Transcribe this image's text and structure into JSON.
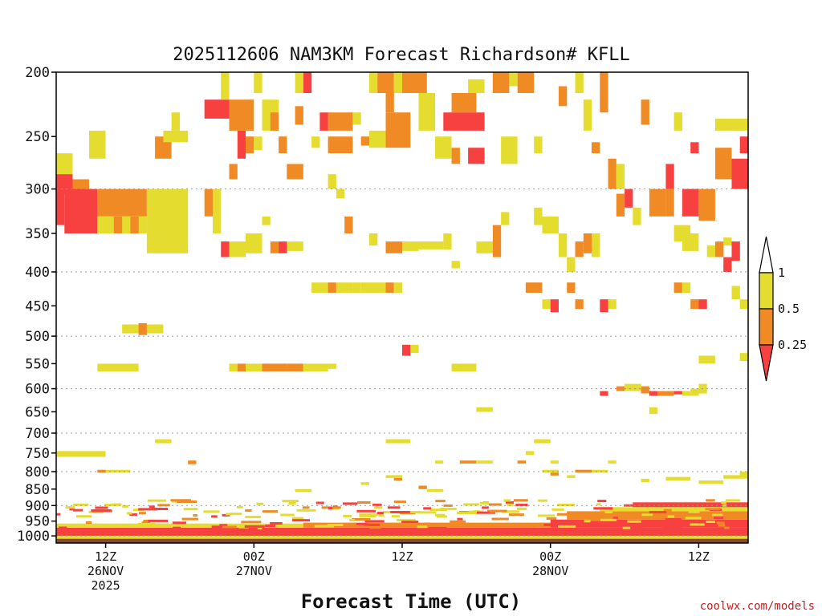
{
  "chart_data": {
    "type": "heatmap",
    "title": "2025112606 NAM3KM Forecast Richardson# KFLL",
    "xlabel": "Forecast Time (UTC)",
    "credit": "coolwx.com/models",
    "y_axis": {
      "scale": "pressure",
      "range": [
        1025,
        200
      ],
      "ticks": [
        200,
        250,
        300,
        350,
        400,
        450,
        500,
        550,
        600,
        650,
        700,
        750,
        800,
        850,
        900,
        950,
        1000
      ],
      "gridlines": [
        300,
        400,
        500,
        600,
        700,
        800,
        900,
        1000
      ]
    },
    "x_axis": {
      "range_hours": [
        0,
        84
      ],
      "ticks": [
        {
          "hour": 6,
          "line1": "12Z",
          "line2": "26NOV",
          "line3": "2025"
        },
        {
          "hour": 24,
          "line1": "00Z",
          "line2": "27NOV",
          "line3": ""
        },
        {
          "hour": 42,
          "line1": "12Z",
          "line2": "",
          "line3": ""
        },
        {
          "hour": 60,
          "line1": "00Z",
          "line2": "28NOV",
          "line3": ""
        },
        {
          "hour": 78,
          "line1": "12Z",
          "line2": "",
          "line3": ""
        }
      ]
    },
    "legend": {
      "placement": "right",
      "labels": [
        "1",
        "0.5",
        "0.25"
      ],
      "bins": [
        {
          "range": "0.5-1",
          "color": "#e5dc30"
        },
        {
          "range": "0.25-0.5",
          "color": "#f08a24"
        },
        {
          "range": "<0.25",
          "color": "#f74040"
        }
      ]
    },
    "colors": {
      "yellow": "#e5dc30",
      "orange": "#f08a24",
      "red": "#f74040",
      "ground": "#8b4a26"
    },
    "cells": [
      [
        0,
        2,
        265,
        305,
        "y"
      ],
      [
        0,
        2,
        285,
        305,
        "r"
      ],
      [
        2,
        4,
        290,
        305,
        "o"
      ],
      [
        0,
        1,
        300,
        340,
        "r"
      ],
      [
        1,
        5,
        300,
        350,
        "r"
      ],
      [
        5,
        11,
        300,
        330,
        "o"
      ],
      [
        5,
        11,
        330,
        350,
        "y"
      ],
      [
        11,
        16,
        300,
        375,
        "y"
      ],
      [
        7,
        8,
        330,
        350,
        "o"
      ],
      [
        9,
        10,
        330,
        350,
        "o"
      ],
      [
        4,
        6,
        245,
        270,
        "y"
      ],
      [
        12,
        14,
        250,
        270,
        "o"
      ],
      [
        13,
        16,
        245,
        255,
        "y"
      ],
      [
        14,
        15,
        230,
        245,
        "y"
      ],
      [
        18,
        19,
        300,
        330,
        "o"
      ],
      [
        19,
        20,
        300,
        350,
        "y"
      ],
      [
        18,
        21,
        220,
        235,
        "r"
      ],
      [
        21,
        24,
        220,
        245,
        "o"
      ],
      [
        20,
        21,
        200,
        220,
        "y"
      ],
      [
        22,
        23,
        245,
        270,
        "r"
      ],
      [
        23,
        24,
        250,
        265,
        "o"
      ],
      [
        24,
        25,
        250,
        262,
        "y"
      ],
      [
        25,
        27,
        220,
        245,
        "y"
      ],
      [
        24,
        25,
        200,
        215,
        "y"
      ],
      [
        26,
        27,
        230,
        245,
        "o"
      ],
      [
        27,
        28,
        250,
        265,
        "o"
      ],
      [
        28,
        30,
        275,
        290,
        "o"
      ],
      [
        21,
        22,
        275,
        290,
        "o"
      ],
      [
        29,
        30,
        200,
        215,
        "y"
      ],
      [
        30,
        31,
        200,
        215,
        "r"
      ],
      [
        29,
        30,
        225,
        240,
        "o"
      ],
      [
        31,
        32,
        250,
        260,
        "y"
      ],
      [
        32,
        33,
        230,
        245,
        "r"
      ],
      [
        33,
        36,
        230,
        245,
        "o"
      ],
      [
        33,
        36,
        250,
        265,
        "o"
      ],
      [
        36,
        37,
        230,
        240,
        "y"
      ],
      [
        37,
        38,
        250,
        258,
        "o"
      ],
      [
        38,
        39,
        200,
        215,
        "y"
      ],
      [
        39,
        40,
        200,
        215,
        "o"
      ],
      [
        40,
        41,
        200,
        230,
        "o"
      ],
      [
        40,
        43,
        230,
        260,
        "o"
      ],
      [
        38,
        40,
        245,
        260,
        "y"
      ],
      [
        41,
        42,
        200,
        215,
        "y"
      ],
      [
        42,
        45,
        200,
        215,
        "o"
      ],
      [
        44,
        46,
        215,
        245,
        "y"
      ],
      [
        47,
        52,
        230,
        245,
        "r"
      ],
      [
        48,
        51,
        215,
        230,
        "o"
      ],
      [
        46,
        48,
        250,
        270,
        "y"
      ],
      [
        48,
        49,
        260,
        275,
        "o"
      ],
      [
        50,
        52,
        260,
        275,
        "r"
      ],
      [
        50,
        52,
        205,
        215,
        "y"
      ],
      [
        53,
        55,
        200,
        215,
        "o"
      ],
      [
        55,
        56,
        200,
        210,
        "y"
      ],
      [
        54,
        56,
        250,
        275,
        "y"
      ],
      [
        56,
        58,
        200,
        215,
        "o"
      ],
      [
        58,
        59,
        250,
        265,
        "y"
      ],
      [
        61,
        62,
        210,
        225,
        "o"
      ],
      [
        63,
        64,
        200,
        215,
        "y"
      ],
      [
        64,
        65,
        220,
        245,
        "y"
      ],
      [
        65,
        66,
        255,
        265,
        "o"
      ],
      [
        66,
        67,
        200,
        230,
        "o"
      ],
      [
        67,
        68,
        270,
        300,
        "o"
      ],
      [
        68,
        69,
        275,
        300,
        "y"
      ],
      [
        68,
        69,
        305,
        330,
        "o"
      ],
      [
        69,
        70,
        300,
        320,
        "r"
      ],
      [
        70,
        71,
        320,
        340,
        "y"
      ],
      [
        71,
        72,
        220,
        240,
        "o"
      ],
      [
        72,
        74,
        300,
        330,
        "o"
      ],
      [
        74,
        75,
        275,
        300,
        "r"
      ],
      [
        74,
        75,
        300,
        330,
        "o"
      ],
      [
        75,
        76,
        230,
        245,
        "y"
      ],
      [
        76,
        78,
        300,
        330,
        "r"
      ],
      [
        77,
        78,
        255,
        265,
        "r"
      ],
      [
        78,
        80,
        300,
        335,
        "o"
      ],
      [
        80,
        82,
        260,
        290,
        "o"
      ],
      [
        82,
        84,
        270,
        300,
        "r"
      ],
      [
        83,
        84,
        250,
        265,
        "r"
      ],
      [
        80,
        84,
        235,
        245,
        "y"
      ],
      [
        20,
        21,
        360,
        380,
        "r"
      ],
      [
        21,
        23,
        360,
        380,
        "y"
      ],
      [
        23,
        25,
        350,
        375,
        "y"
      ],
      [
        25,
        26,
        330,
        340,
        "y"
      ],
      [
        26,
        27,
        360,
        375,
        "o"
      ],
      [
        27,
        28,
        360,
        375,
        "r"
      ],
      [
        28,
        30,
        360,
        372,
        "y"
      ],
      [
        33,
        34,
        285,
        300,
        "y"
      ],
      [
        34,
        35,
        300,
        310,
        "y"
      ],
      [
        35,
        36,
        330,
        350,
        "o"
      ],
      [
        38,
        39,
        350,
        365,
        "y"
      ],
      [
        40,
        42,
        360,
        375,
        "o"
      ],
      [
        42,
        44,
        360,
        372,
        "y"
      ],
      [
        44,
        47,
        360,
        370,
        "y"
      ],
      [
        47,
        48,
        350,
        370,
        "y"
      ],
      [
        48,
        49,
        385,
        395,
        "y"
      ],
      [
        51,
        53,
        360,
        375,
        "y"
      ],
      [
        53,
        54,
        340,
        380,
        "o"
      ],
      [
        54,
        55,
        325,
        340,
        "y"
      ],
      [
        58,
        59,
        320,
        340,
        "y"
      ],
      [
        59,
        61,
        330,
        350,
        "y"
      ],
      [
        61,
        62,
        350,
        380,
        "y"
      ],
      [
        62,
        63,
        380,
        400,
        "y"
      ],
      [
        63,
        64,
        360,
        380,
        "o"
      ],
      [
        64,
        65,
        350,
        375,
        "o"
      ],
      [
        65,
        66,
        350,
        380,
        "y"
      ],
      [
        75,
        77,
        340,
        360,
        "y"
      ],
      [
        76,
        78,
        350,
        372,
        "y"
      ],
      [
        79,
        80,
        365,
        380,
        "y"
      ],
      [
        80,
        81,
        360,
        380,
        "o"
      ],
      [
        81,
        82,
        380,
        400,
        "r"
      ],
      [
        82,
        83,
        360,
        385,
        "r"
      ],
      [
        81,
        82,
        355,
        365,
        "y"
      ],
      [
        31,
        33,
        415,
        430,
        "y"
      ],
      [
        33,
        34,
        415,
        430,
        "o"
      ],
      [
        34,
        36,
        415,
        430,
        "y"
      ],
      [
        36,
        37,
        415,
        430,
        "y"
      ],
      [
        37,
        38,
        415,
        430,
        "y"
      ],
      [
        38,
        40,
        415,
        430,
        "y"
      ],
      [
        40,
        41,
        415,
        430,
        "o"
      ],
      [
        41,
        42,
        415,
        430,
        "y"
      ],
      [
        57,
        59,
        415,
        430,
        "o"
      ],
      [
        59,
        60,
        440,
        455,
        "y"
      ],
      [
        60,
        61,
        440,
        460,
        "r"
      ],
      [
        62,
        63,
        415,
        430,
        "o"
      ],
      [
        63,
        64,
        440,
        455,
        "o"
      ],
      [
        66,
        67,
        440,
        460,
        "r"
      ],
      [
        67,
        68,
        440,
        455,
        "y"
      ],
      [
        75,
        76,
        415,
        430,
        "o"
      ],
      [
        76,
        77,
        415,
        430,
        "y"
      ],
      [
        77,
        78,
        440,
        455,
        "o"
      ],
      [
        78,
        79,
        440,
        455,
        "r"
      ],
      [
        82,
        83,
        420,
        440,
        "y"
      ],
      [
        83,
        84,
        440,
        455,
        "y"
      ],
      [
        8,
        11,
        480,
        495,
        "y"
      ],
      [
        10,
        11,
        478,
        498,
        "o"
      ],
      [
        11,
        13,
        480,
        495,
        "y"
      ],
      [
        42,
        43,
        515,
        535,
        "r"
      ],
      [
        43,
        44,
        515,
        530,
        "y"
      ],
      [
        5,
        10,
        550,
        565,
        "y"
      ],
      [
        21,
        22,
        550,
        565,
        "y"
      ],
      [
        22,
        23,
        550,
        565,
        "o"
      ],
      [
        23,
        25,
        550,
        565,
        "y"
      ],
      [
        25,
        28,
        550,
        565,
        "o"
      ],
      [
        28,
        30,
        550,
        565,
        "o"
      ],
      [
        30,
        33,
        550,
        565,
        "y"
      ],
      [
        33,
        34,
        550,
        560,
        "y"
      ],
      [
        48,
        51,
        550,
        565,
        "y"
      ],
      [
        78,
        80,
        535,
        550,
        "y"
      ],
      [
        83,
        84,
        530,
        545,
        "y"
      ],
      [
        68,
        69,
        595,
        605,
        "o"
      ],
      [
        69,
        71,
        590,
        605,
        "y"
      ],
      [
        71,
        72,
        595,
        610,
        "o"
      ],
      [
        72,
        73,
        605,
        615,
        "r"
      ],
      [
        73,
        75,
        605,
        615,
        "o"
      ],
      [
        75,
        76,
        605,
        612,
        "r"
      ],
      [
        76,
        77,
        605,
        615,
        "y"
      ],
      [
        77,
        78,
        600,
        615,
        "y"
      ],
      [
        78,
        79,
        590,
        610,
        "y"
      ],
      [
        66,
        67,
        605,
        615,
        "r"
      ],
      [
        51,
        53,
        640,
        650,
        "y"
      ],
      [
        72,
        73,
        640,
        655,
        "y"
      ],
      [
        12,
        14,
        715,
        725,
        "y"
      ],
      [
        40,
        43,
        715,
        725,
        "y"
      ],
      [
        58,
        60,
        715,
        725,
        "y"
      ],
      [
        57,
        58,
        745,
        755,
        "y"
      ],
      [
        0,
        6,
        745,
        760,
        "y"
      ],
      [
        16,
        17,
        770,
        780,
        "o"
      ],
      [
        46,
        47,
        770,
        778,
        "y"
      ],
      [
        49,
        51,
        770,
        778,
        "o"
      ],
      [
        51,
        53,
        770,
        778,
        "y"
      ],
      [
        56,
        57,
        770,
        778,
        "o"
      ],
      [
        60,
        61,
        770,
        778,
        "y"
      ],
      [
        67,
        68,
        770,
        778,
        "y"
      ],
      [
        5,
        6,
        795,
        803,
        "o"
      ],
      [
        6,
        9,
        795,
        803,
        "y"
      ],
      [
        40,
        42,
        810,
        818,
        "y"
      ],
      [
        41,
        42,
        818,
        825,
        "o"
      ],
      [
        59,
        61,
        795,
        803,
        "y"
      ],
      [
        60,
        61,
        803,
        811,
        "o"
      ],
      [
        62,
        63,
        810,
        818,
        "y"
      ],
      [
        63,
        65,
        795,
        803,
        "o"
      ],
      [
        65,
        67,
        795,
        803,
        "y"
      ],
      [
        71,
        72,
        820,
        830,
        "y"
      ],
      [
        74,
        77,
        815,
        825,
        "y"
      ],
      [
        78,
        81,
        825,
        835,
        "y"
      ],
      [
        81,
        84,
        810,
        820,
        "y"
      ],
      [
        83,
        84,
        800,
        810,
        "y"
      ],
      [
        29,
        31,
        850,
        858,
        "y"
      ],
      [
        45,
        47,
        850,
        858,
        "y"
      ],
      [
        37,
        38,
        830,
        838,
        "y"
      ],
      [
        44,
        45,
        840,
        850,
        "o"
      ]
    ],
    "low_level_bands": [
      [
        0,
        84,
        972,
        1000,
        "r"
      ],
      [
        0,
        84,
        1000,
        1010,
        "y"
      ],
      [
        0,
        84,
        1010,
        1025,
        "g"
      ],
      [
        0,
        30,
        958,
        972,
        "y"
      ],
      [
        30,
        60,
        955,
        972,
        "o"
      ],
      [
        60,
        84,
        945,
        972,
        "r"
      ],
      [
        62,
        84,
        918,
        945,
        "o"
      ],
      [
        66,
        84,
        905,
        918,
        "y"
      ],
      [
        70,
        84,
        890,
        905,
        "r"
      ]
    ]
  }
}
